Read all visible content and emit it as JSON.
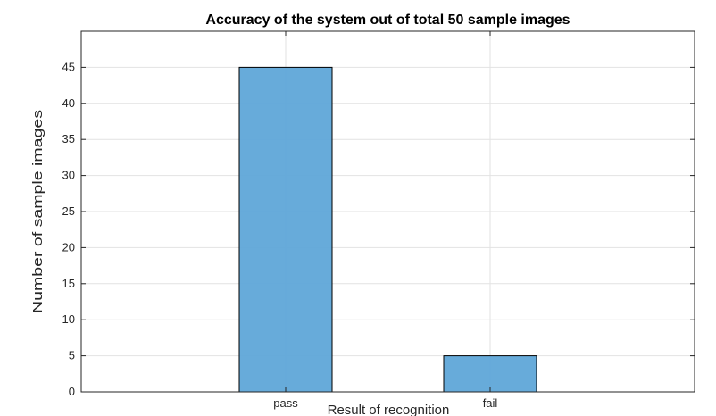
{
  "chart_data": {
    "type": "bar",
    "title": "Accuracy of the system out of total 50 sample images",
    "xlabel": "Result of recognition",
    "ylabel": "Number of sample images",
    "categories": [
      "pass",
      "fail"
    ],
    "values": [
      45,
      5
    ],
    "ylim": [
      0,
      50
    ],
    "yticks": [
      0,
      5,
      10,
      15,
      20,
      25,
      30,
      35,
      40,
      45
    ],
    "grid": true,
    "bar_color": "#5fa6d8",
    "bar_edge_color": "#000000",
    "grid_color": "#e2e2e2"
  }
}
